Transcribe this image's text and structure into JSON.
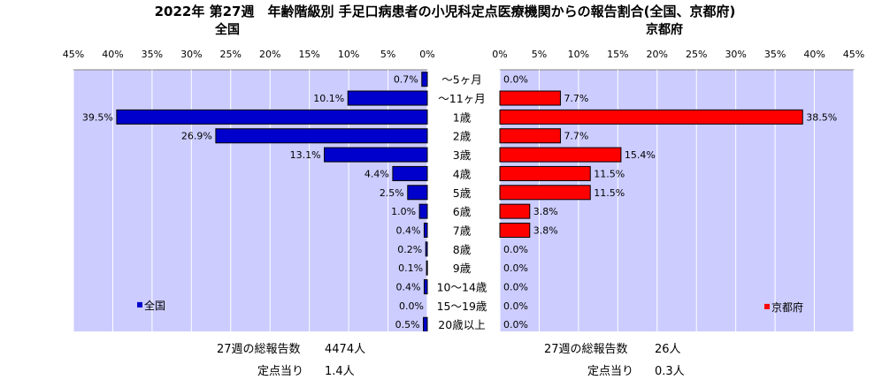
{
  "title": "2022年 第27週　年齢階級別 手足口病患者の小児科定点医療機関からの報告割合(全国、京都府)",
  "footer": {
    "national_total_label": "27週の総報告数",
    "national_total_value": "4474人",
    "national_per_label": "定点当り",
    "national_per_value": "1.4人",
    "kyoto_total_label": "27週の総報告数",
    "kyoto_total_value": "26人",
    "kyoto_per_label": "定点当り",
    "kyoto_per_value": "0.3人"
  },
  "colors": {
    "national": "#0000cc",
    "kyoto": "#ff0000",
    "plot_bg": "#ccccff",
    "grid": "#ffffff"
  },
  "chart_data": [
    {
      "type": "bar",
      "orientation": "horizontal",
      "direction": "right-to-left",
      "subtitle": "全国",
      "categories": [
        "～5ヶ月",
        "～11ヶ月",
        "1歳",
        "2歳",
        "3歳",
        "4歳",
        "5歳",
        "6歳",
        "7歳",
        "8歳",
        "9歳",
        "10～14歳",
        "15～19歳",
        "20歳以上"
      ],
      "series": [
        {
          "name": "全国",
          "values": [
            0.7,
            10.1,
            39.5,
            26.9,
            13.1,
            4.4,
            2.5,
            1.0,
            0.4,
            0.2,
            0.1,
            0.4,
            0.0,
            0.5
          ]
        }
      ],
      "value_labels": [
        "0.7%",
        "10.1%",
        "39.5%",
        "26.9%",
        "13.1%",
        "4.4%",
        "2.5%",
        "1.0%",
        "0.4%",
        "0.2%",
        "0.1%",
        "0.4%",
        "0.0%",
        "0.5%"
      ],
      "xlim": [
        0,
        45
      ],
      "ticks": [
        "45%",
        "40%",
        "35%",
        "30%",
        "25%",
        "20%",
        "15%",
        "10%",
        "5%",
        "0%"
      ],
      "grid": true,
      "legend": "bottom-left"
    },
    {
      "type": "bar",
      "orientation": "horizontal",
      "direction": "left-to-right",
      "subtitle": "京都府",
      "categories": [
        "～5ヶ月",
        "～11ヶ月",
        "1歳",
        "2歳",
        "3歳",
        "4歳",
        "5歳",
        "6歳",
        "7歳",
        "8歳",
        "9歳",
        "10～14歳",
        "15～19歳",
        "20歳以上"
      ],
      "series": [
        {
          "name": "京都府",
          "values": [
            0.0,
            7.7,
            38.5,
            7.7,
            15.4,
            11.5,
            11.5,
            3.8,
            3.8,
            0.0,
            0.0,
            0.0,
            0.0,
            0.0
          ]
        }
      ],
      "value_labels": [
        "0.0%",
        "7.7%",
        "38.5%",
        "7.7%",
        "15.4%",
        "11.5%",
        "11.5%",
        "3.8%",
        "3.8%",
        "0.0%",
        "0.0%",
        "0.0%",
        "0.0%",
        "0.0%"
      ],
      "xlim": [
        0,
        45
      ],
      "ticks": [
        "0%",
        "5%",
        "10%",
        "15%",
        "20%",
        "25%",
        "30%",
        "35%",
        "40%",
        "45%"
      ],
      "grid": true,
      "legend": "bottom-right"
    }
  ]
}
